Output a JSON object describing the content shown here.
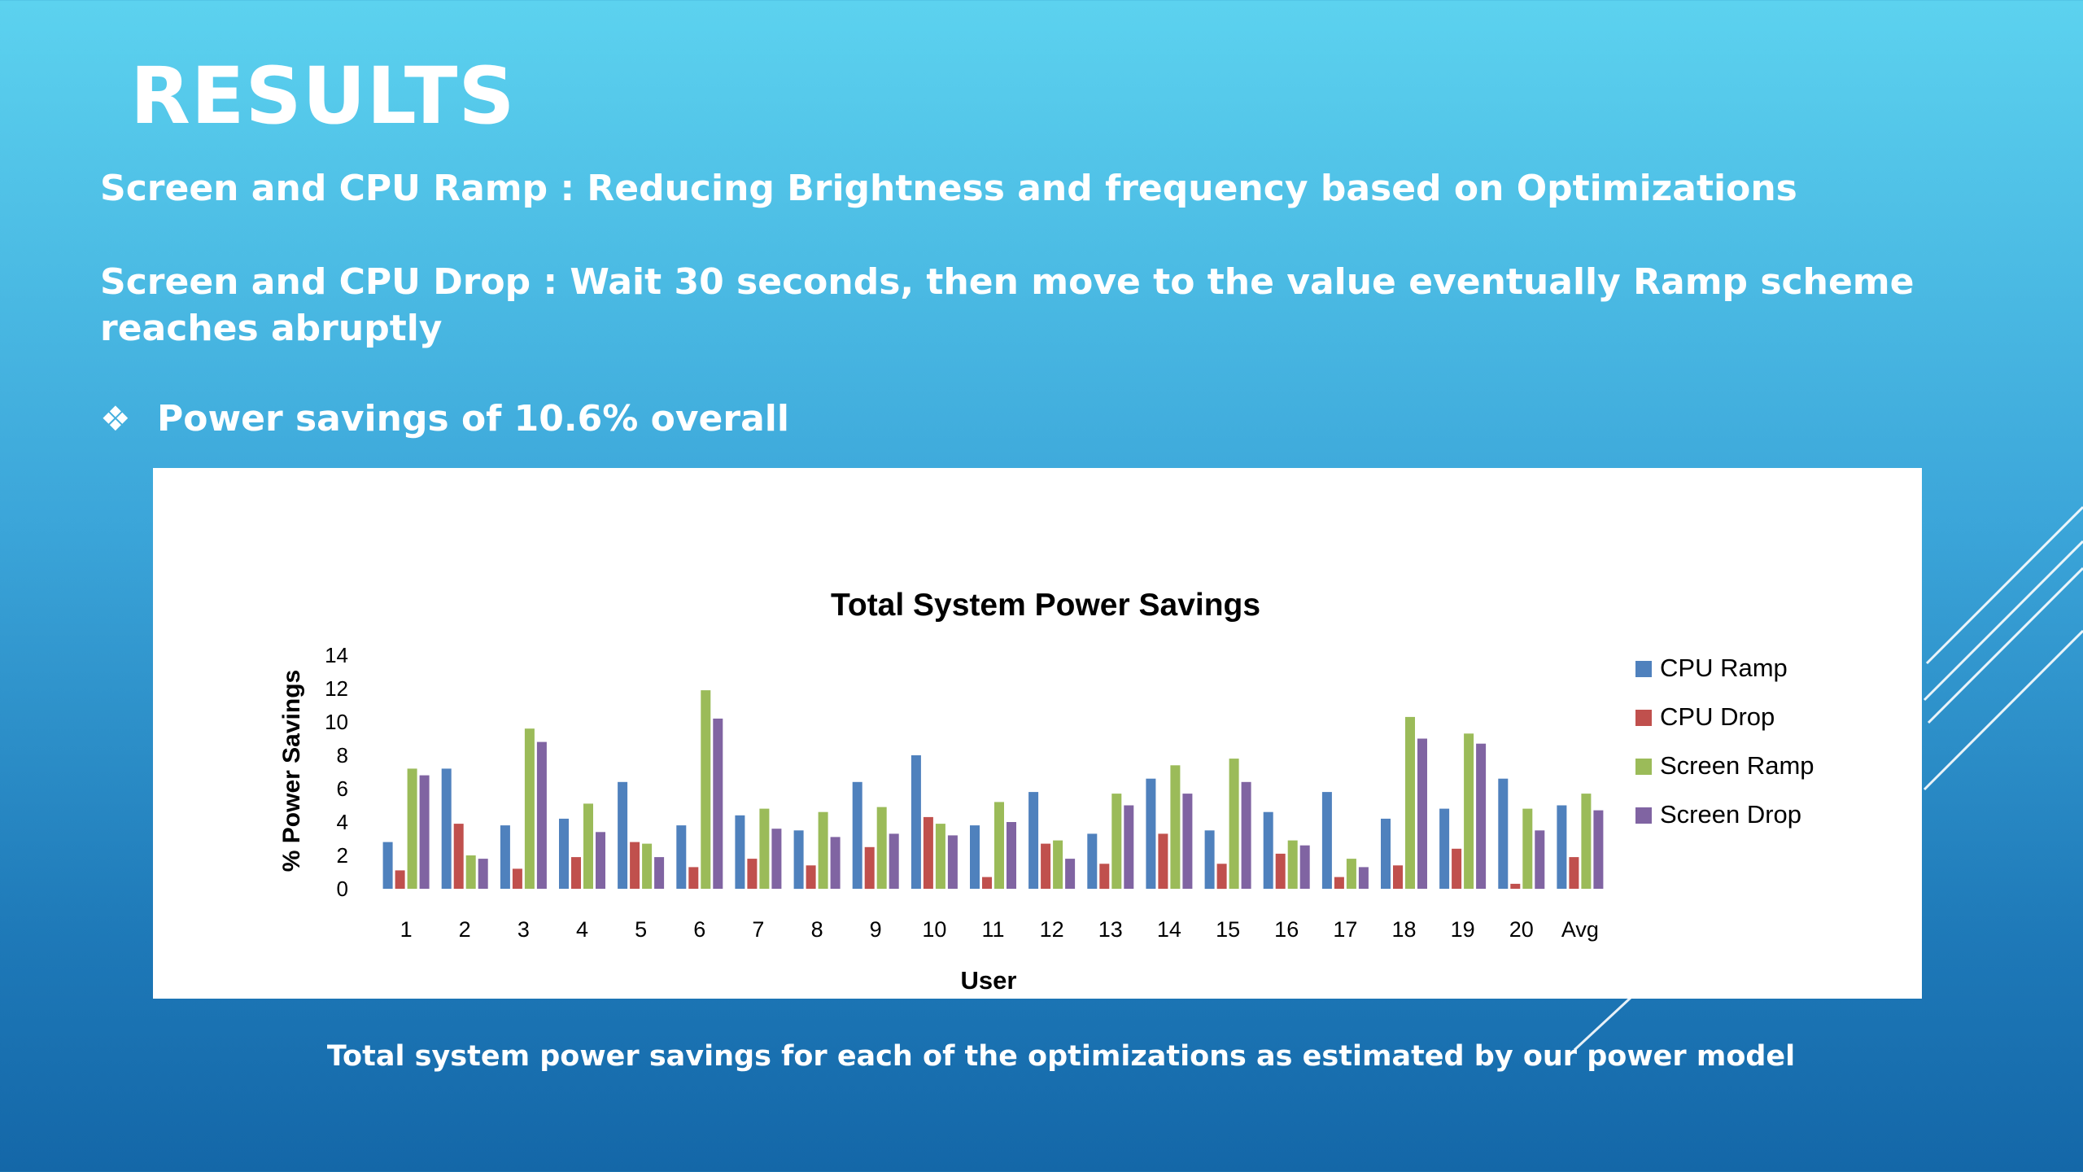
{
  "slide": {
    "title": "RESULTS",
    "line1": "Screen and CPU Ramp : Reducing Brightness and frequency based on Optimizations",
    "line2": "Screen and CPU Drop : Wait 30 seconds, then move to the value eventually Ramp scheme reaches abruptly",
    "bullet_icon": "❖",
    "bullet": "Power savings of 10.6% overall",
    "caption": "Total system power savings for each of the optimizations as estimated by our power model"
  },
  "chart_data": {
    "type": "bar",
    "title": "Total System Power Savings",
    "xlabel": "User",
    "ylabel": "% Power Savings",
    "ylim": [
      0,
      14
    ],
    "yticks": [
      0,
      2,
      4,
      6,
      8,
      10,
      12,
      14
    ],
    "grid": false,
    "legend_position": "right",
    "categories": [
      "1",
      "2",
      "3",
      "4",
      "5",
      "6",
      "7",
      "8",
      "9",
      "10",
      "11",
      "12",
      "13",
      "14",
      "15",
      "16",
      "17",
      "18",
      "19",
      "20",
      "Avg"
    ],
    "series": [
      {
        "name": "CPU Ramp",
        "color": "#4f81bd",
        "values": [
          2.8,
          7.2,
          3.8,
          4.2,
          6.4,
          3.8,
          4.4,
          3.5,
          6.4,
          8.0,
          3.8,
          5.8,
          3.3,
          6.6,
          3.5,
          4.6,
          5.8,
          4.2,
          4.8,
          6.6,
          5.0
        ]
      },
      {
        "name": "CPU Drop",
        "color": "#c0504d",
        "values": [
          1.1,
          3.9,
          1.2,
          1.9,
          2.8,
          1.3,
          1.8,
          1.4,
          2.5,
          4.3,
          0.7,
          2.7,
          1.5,
          3.3,
          1.5,
          2.1,
          0.7,
          1.4,
          2.4,
          0.3,
          1.9
        ]
      },
      {
        "name": "Screen Ramp",
        "color": "#9bbb59",
        "values": [
          7.2,
          2.0,
          9.6,
          5.1,
          2.7,
          11.9,
          4.8,
          4.6,
          4.9,
          3.9,
          5.2,
          2.9,
          5.7,
          7.4,
          7.8,
          2.9,
          1.8,
          10.3,
          9.3,
          4.8,
          5.7
        ]
      },
      {
        "name": "Screen Drop",
        "color": "#8064a2",
        "values": [
          6.8,
          1.8,
          8.8,
          3.4,
          1.9,
          10.2,
          3.6,
          3.1,
          3.3,
          3.2,
          4.0,
          1.8,
          5.0,
          5.7,
          6.4,
          2.6,
          1.3,
          9.0,
          8.7,
          3.5,
          4.7
        ]
      }
    ]
  }
}
